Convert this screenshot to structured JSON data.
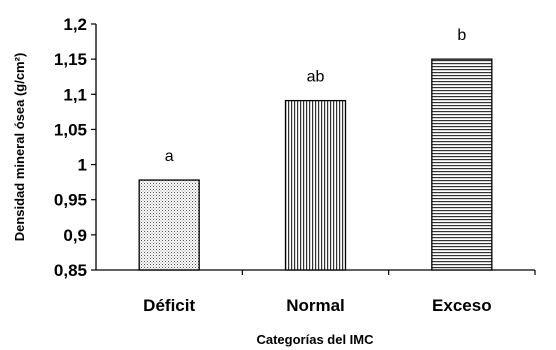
{
  "chart_data": {
    "type": "bar",
    "categories": [
      "Déficit",
      "Normal",
      "Exceso"
    ],
    "values": [
      0.978,
      1.091,
      1.15
    ],
    "annotations": [
      "a",
      "ab",
      "b"
    ],
    "xlabel": "Categorías del IMC",
    "ylabel": "Densidad mineral ósea (g/cm²)",
    "ylim": [
      0.85,
      1.2
    ],
    "yticks": [
      "0,85",
      "0,9",
      "0,95",
      "1",
      "1,05",
      "1,1",
      "1,15",
      "1,2"
    ],
    "grid": false,
    "bar_patterns": [
      "dotted",
      "vertical-lines",
      "horizontal-lines"
    ]
  }
}
